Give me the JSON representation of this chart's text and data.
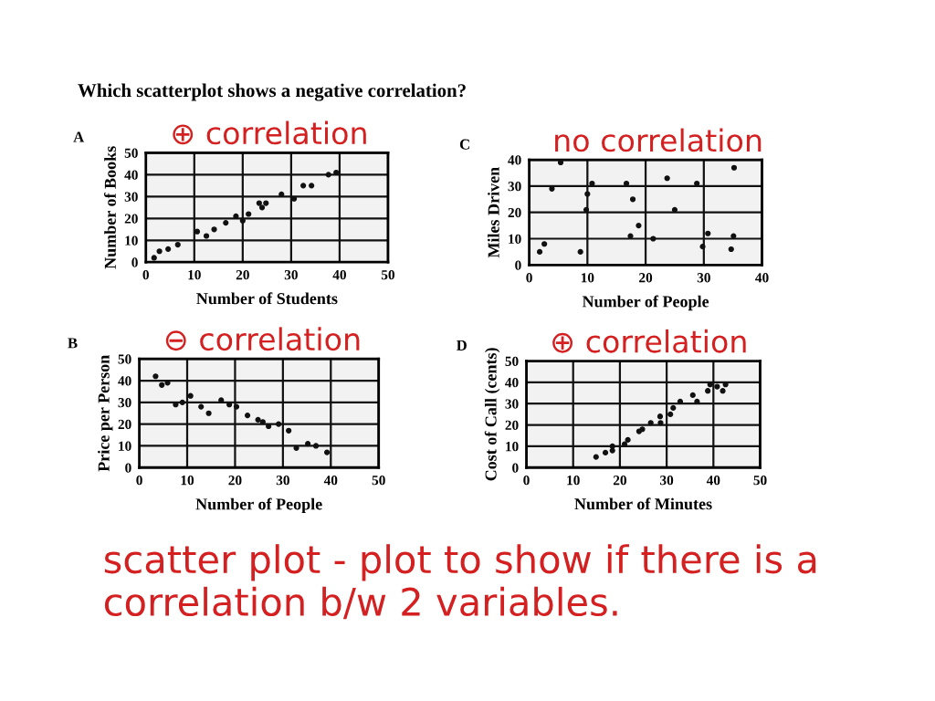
{
  "chart_data": [
    {
      "type": "scatter",
      "title": "A",
      "subtitle": "⊕ correlation",
      "xlabel": "Number of Students",
      "ylabel": "Number of Books",
      "annotations": [
        "Which scatterplot shows a negative correlation?"
      ],
      "color": "#111111",
      "marker": "circle",
      "grid": true,
      "x": [
        1.7,
        2.8,
        4.6,
        6.6,
        10.6,
        12.5,
        14.1,
        16.5,
        18.6,
        20,
        21.2,
        23.4,
        24.8,
        24,
        28,
        30.6,
        32.5,
        34.2,
        37.7,
        39.3
      ],
      "values": [
        2,
        5,
        6,
        8,
        14,
        12,
        15,
        18,
        21,
        19,
        22,
        27,
        27,
        25,
        31,
        29,
        35,
        35,
        40,
        41
      ],
      "xlim": [
        0,
        50
      ],
      "ylim": [
        0,
        50
      ],
      "xticks": [
        0,
        10,
        20,
        30,
        40,
        50
      ],
      "yticks": [
        0,
        10,
        20,
        30,
        40,
        50
      ]
    },
    {
      "type": "scatter",
      "title": "C",
      "subtitle": "no correlation",
      "xlabel": "Number of People",
      "ylabel": "Miles Driven",
      "color": "#111111",
      "marker": "circle",
      "grid": true,
      "x": [
        1.8,
        2.6,
        3.9,
        5.4,
        8.8,
        10,
        9.8,
        10.8,
        16.7,
        17.8,
        17.4,
        18.8,
        21.3,
        23.7,
        25,
        28.8,
        29.8,
        30.7,
        34.7,
        35.1,
        35.2
      ],
      "values": [
        5,
        8,
        29,
        39,
        5,
        27,
        21,
        31,
        31,
        25,
        11,
        15,
        10,
        33,
        21,
        31,
        7,
        12,
        6,
        11,
        37
      ],
      "xlim": [
        0,
        40
      ],
      "ylim": [
        0,
        40
      ],
      "xticks": [
        0,
        10,
        20,
        30,
        40
      ],
      "yticks": [
        0,
        10,
        20,
        30,
        40
      ]
    },
    {
      "type": "scatter",
      "title": "B",
      "subtitle": "⊖ correlation",
      "xlabel": "Number of People",
      "ylabel": "Price per Person",
      "color": "#111111",
      "marker": "circle",
      "grid": true,
      "x": [
        3.4,
        4.7,
        5.9,
        7.6,
        9,
        10.7,
        12.9,
        14.5,
        17.1,
        18.8,
        20.3,
        22.6,
        24.8,
        25.8,
        27,
        29.1,
        31.2,
        32.8,
        35.2,
        36.9,
        39.2
      ],
      "values": [
        42,
        38,
        39,
        29,
        30,
        33,
        28,
        25,
        31,
        29,
        28,
        24,
        22,
        21,
        19,
        20,
        17,
        9,
        11,
        10,
        7
      ],
      "xlim": [
        0,
        50
      ],
      "ylim": [
        0,
        50
      ],
      "xticks": [
        0,
        10,
        20,
        30,
        40,
        50
      ],
      "yticks": [
        0,
        10,
        20,
        30,
        40,
        50
      ]
    },
    {
      "type": "scatter",
      "title": "D",
      "subtitle": "⊕ correlation",
      "xlabel": "Number of Minutes",
      "ylabel": "Cost of Call (cents)",
      "annotations": [
        "scatter plot - plot to show if there is a correlation b/w 2 variables."
      ],
      "color": "#111111",
      "marker": "circle",
      "grid": true,
      "x": [
        14.9,
        16.9,
        18.4,
        18.4,
        21,
        21.7,
        24.1,
        24.8,
        26.6,
        28.7,
        28.6,
        30.8,
        31.4,
        32.9,
        35.6,
        36.5,
        38.8,
        39.3,
        40.8,
        42,
        42.6
      ],
      "values": [
        5,
        7,
        8,
        10,
        11,
        13,
        17,
        18,
        21,
        21,
        24,
        25,
        28,
        31,
        34,
        31,
        36,
        39,
        38,
        36,
        39
      ],
      "xlim": [
        0,
        50
      ],
      "ylim": [
        0,
        50
      ],
      "xticks": [
        0,
        10,
        20,
        30,
        40,
        50
      ],
      "yticks": [
        0,
        10,
        20,
        30,
        40,
        50
      ]
    }
  ]
}
